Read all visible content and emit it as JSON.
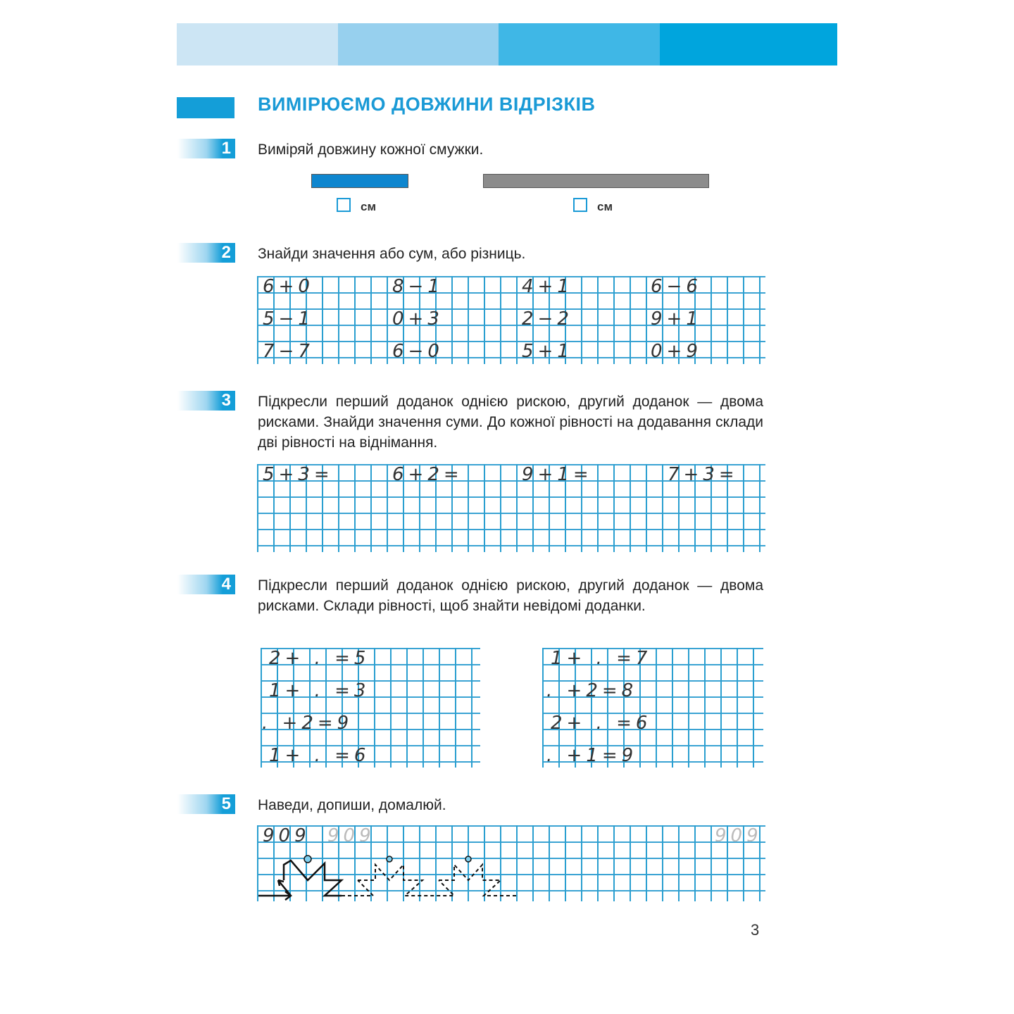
{
  "header": {
    "band_colors": [
      "#cce5f4",
      "#97d0ee",
      "#3fb7e6",
      "#00a5dd"
    ]
  },
  "title": "ВИМІРЮЄМО ДОВЖИНИ ВІДРІЗКІВ",
  "tasks": [
    {
      "number": "1",
      "text": "Виміряй довжину кожної смужки.",
      "units": [
        "см",
        "см"
      ],
      "strip_colors": [
        "#0e86cf",
        "#8c8c8c"
      ]
    },
    {
      "number": "2",
      "text": "Знайди значення або сум, або різниць.",
      "expressions": [
        [
          "6+0",
          "8−1",
          "4+1",
          "6−6"
        ],
        [
          "5−1",
          "0+3",
          "2−2",
          "9+1"
        ],
        [
          "7−7",
          "6−0",
          "5+1",
          "0+9"
        ]
      ]
    },
    {
      "number": "3",
      "text": "Підкресли перший доданок однією рискою, другий доданок — двома рисками. Знайди значення суми. До кожної рівності на додавання склади дві рівності на віднімання.",
      "expressions": [
        "5+3=",
        "6+2=",
        "9+1=",
        "7+3="
      ]
    },
    {
      "number": "4",
      "text": "Підкресли перший доданок однією рискою, другий доданок — двома рисками. Склади рівності, щоб знайти невідомі доданки.",
      "left": [
        "2+ . =5",
        "1+ . =3",
        ". +2=9",
        "1+ . =6"
      ],
      "right": [
        "1+ . =7",
        ". +2=8",
        "2+ . =6",
        ". +1=9"
      ]
    },
    {
      "number": "5",
      "text": "Наведи, допиши, домалюй.",
      "sample": "909",
      "trace": "909"
    }
  ],
  "page_number": "3"
}
